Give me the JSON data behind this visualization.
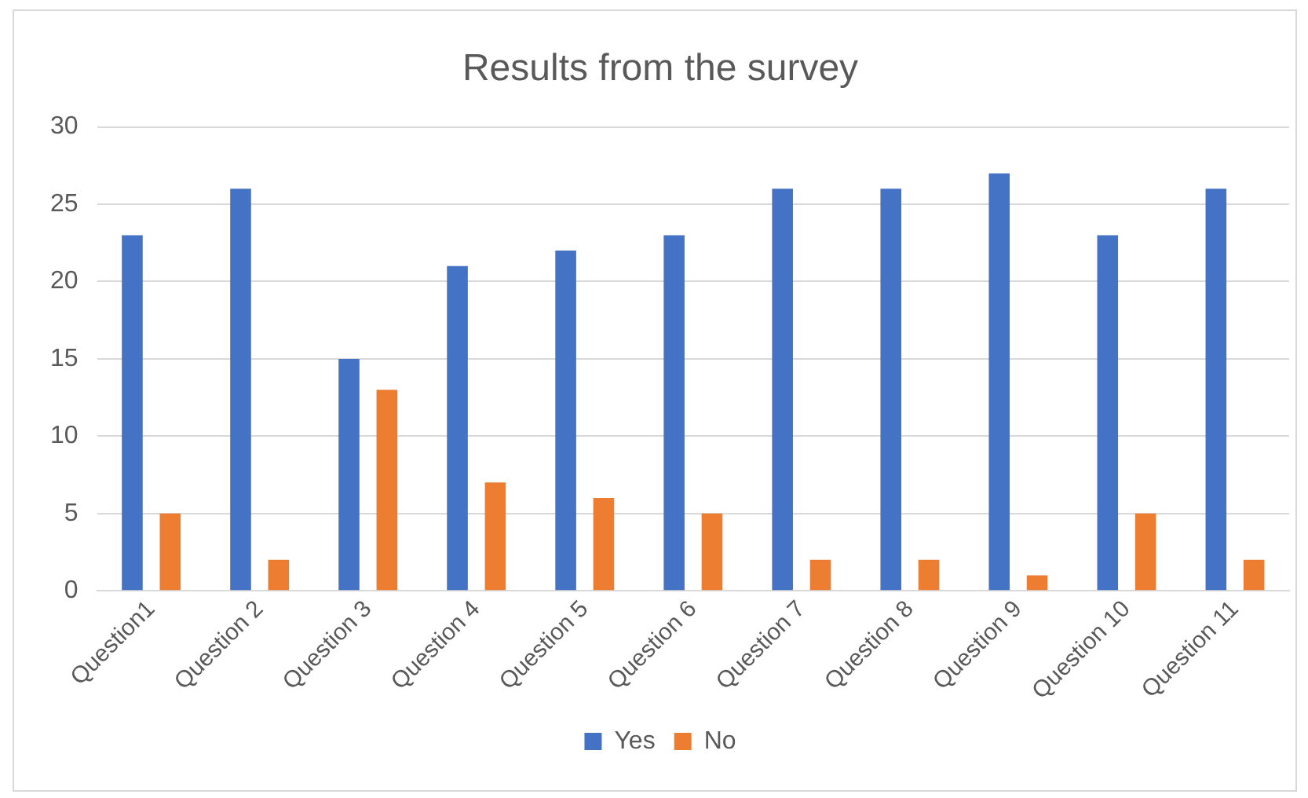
{
  "chart_data": {
    "type": "bar",
    "title": "Results from the survey",
    "categories": [
      "Question1",
      "Question 2",
      "Question 3",
      "Question 4",
      "Question 5",
      "Question 6",
      "Question 7",
      "Question 8",
      "Question 9",
      "Question 10",
      "Question 11"
    ],
    "series": [
      {
        "name": "Yes",
        "color": "#4472c4",
        "values": [
          23,
          26,
          15,
          21,
          22,
          23,
          26,
          26,
          27,
          23,
          26
        ]
      },
      {
        "name": "No",
        "color": "#ed7d31",
        "values": [
          5,
          2,
          13,
          7,
          6,
          5,
          2,
          2,
          1,
          5,
          2
        ]
      }
    ],
    "ylim": [
      0,
      30
    ],
    "yticks": [
      0,
      5,
      10,
      15,
      20,
      25,
      30
    ],
    "grid": "y",
    "legend": "bottom"
  }
}
